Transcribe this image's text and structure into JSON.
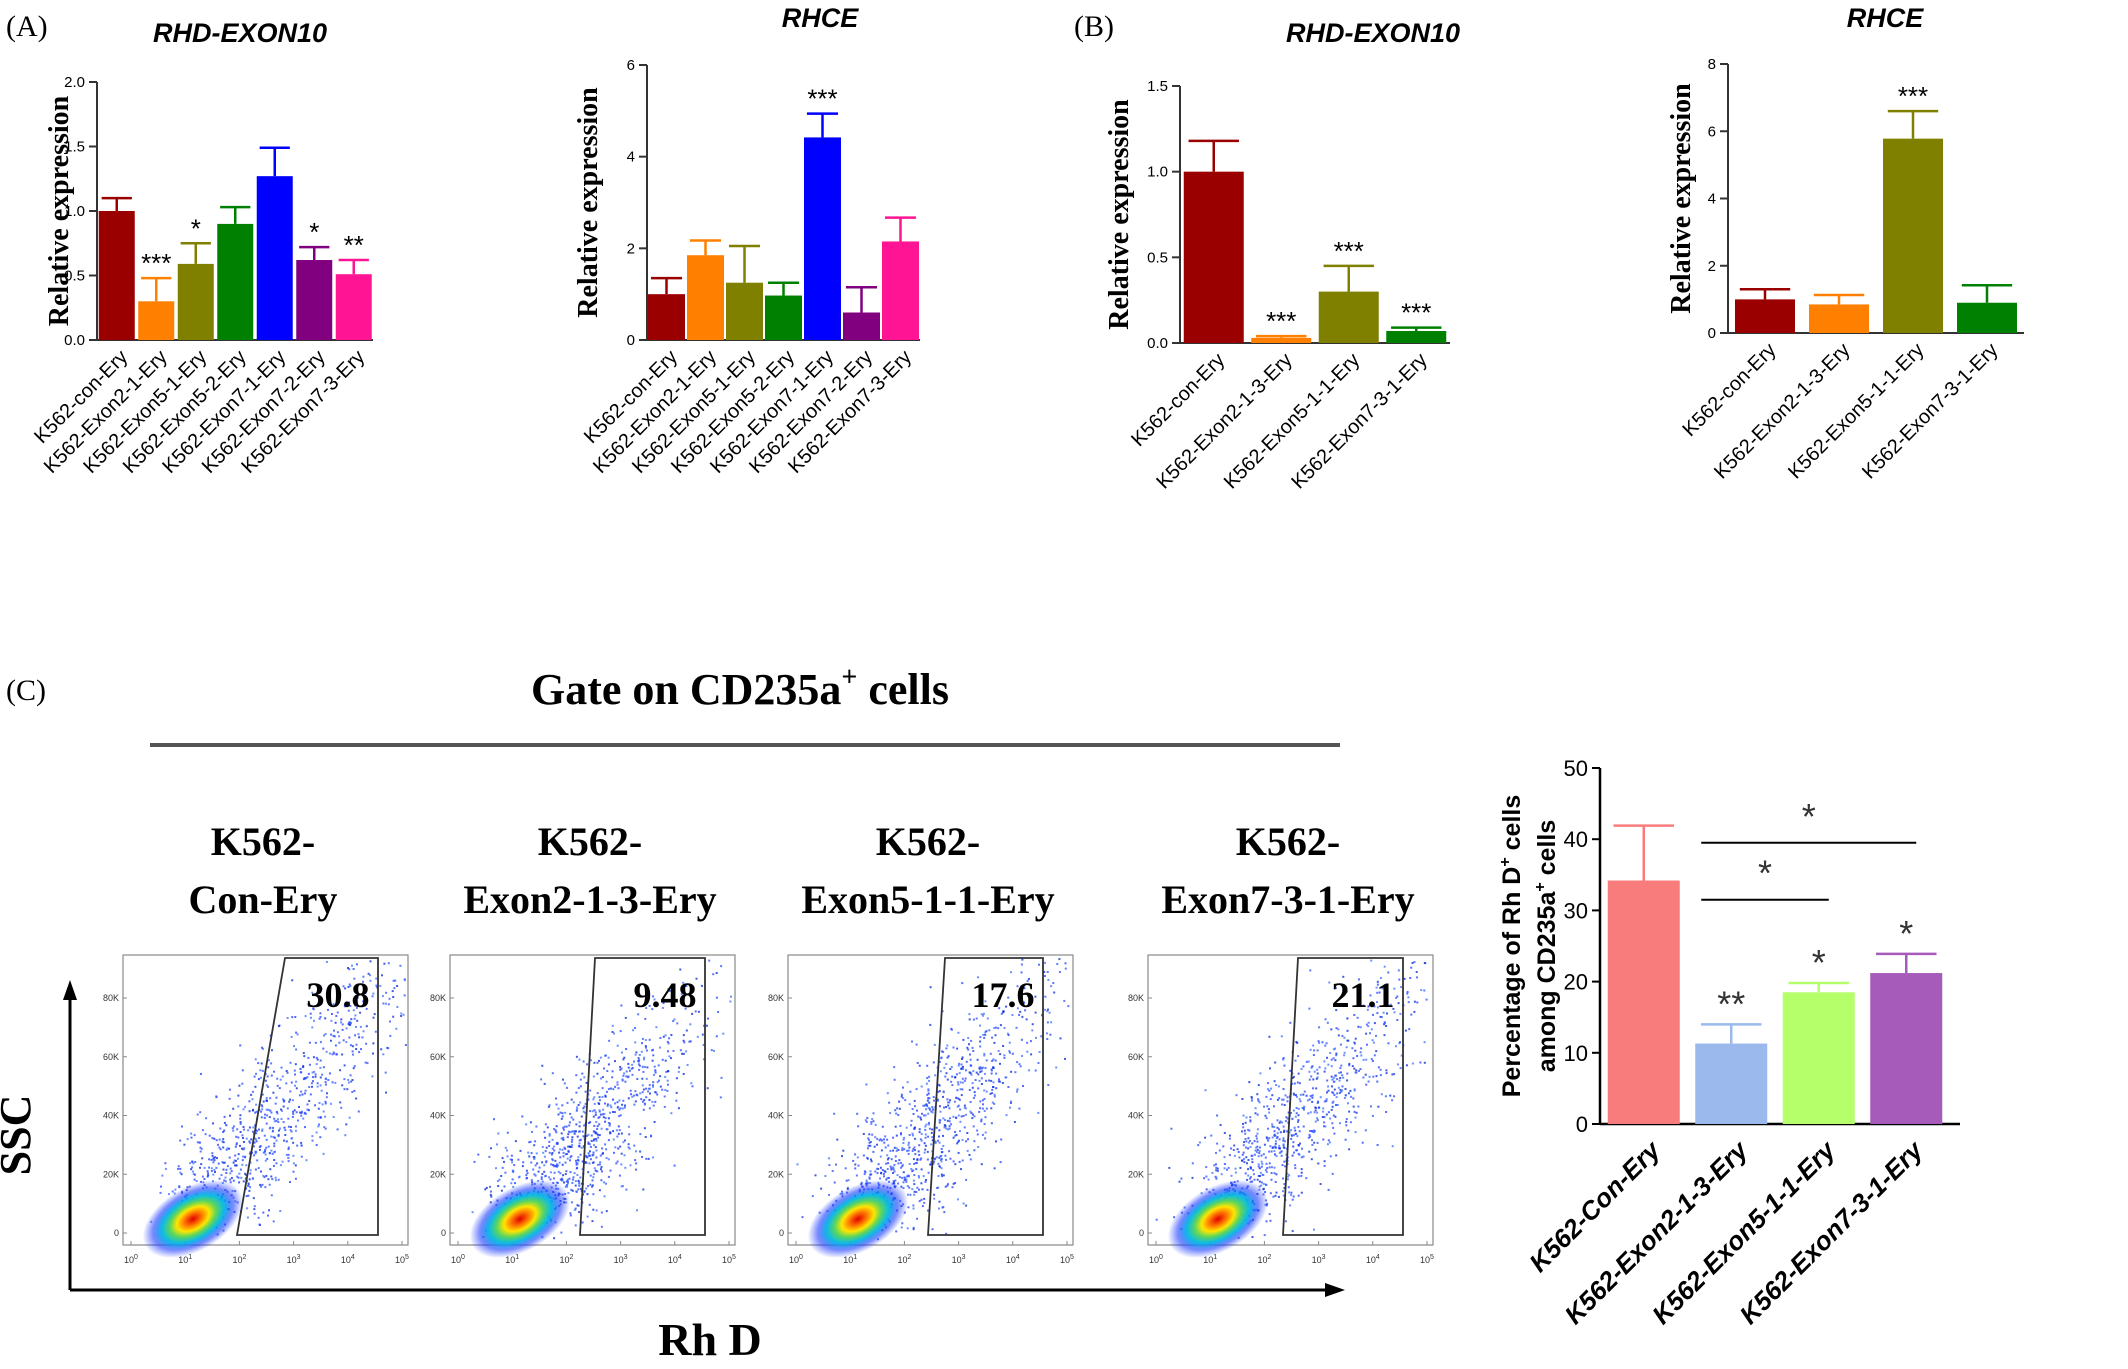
{
  "panel_labels": {
    "a": "(A)",
    "b": "(B)",
    "c": "(C)"
  },
  "gate_title": "Gate on CD235a",
  "gate_title_sup": "+",
  "gate_title_suffix": " cells",
  "flow": {
    "y_label": "SSC",
    "x_label": "Rh D",
    "y_ticks": [
      "0",
      "20K",
      "40K",
      "60K",
      "80K"
    ],
    "x_ticks": [
      "10",
      "10",
      "10",
      "10",
      "10",
      "10"
    ],
    "x_tick_exps": [
      "0",
      "1",
      "2",
      "3",
      "4",
      "5"
    ],
    "panels": [
      {
        "title_line1": "K562-",
        "title_line2": "Con-Ery",
        "gate_value": "30.8"
      },
      {
        "title_line1": "K562-",
        "title_line2": "Exon2-1-3-Ery",
        "gate_value": "9.48"
      },
      {
        "title_line1": "K562-",
        "title_line2": "Exon5-1-1-Ery",
        "gate_value": "17.6"
      },
      {
        "title_line1": "K562-",
        "title_line2": "Exon7-3-1-Ery",
        "gate_value": "21.1"
      }
    ]
  },
  "chart_data": [
    {
      "id": "A1",
      "type": "bar",
      "title": "RHD-EXON10",
      "title_italic": true,
      "ylabel": "Relative expression",
      "ylim": [
        0,
        2.0
      ],
      "yticks": [
        0.0,
        0.5,
        1.0,
        1.5,
        2.0
      ],
      "ytick_labels": [
        "0.0",
        "0.5",
        "1.0",
        "1.5",
        "2.0"
      ],
      "categories": [
        "K562-con-Ery",
        "K562-Exon2-1-Ery",
        "K562-Exon5-1-Ery",
        "K562-Exon5-2-Ery",
        "K562-Exon7-1-Ery",
        "K562-Exon7-2-Ery",
        "K562-Exon7-3-Ery"
      ],
      "values": [
        1.0,
        0.3,
        0.59,
        0.9,
        1.27,
        0.62,
        0.51
      ],
      "errors": [
        0.1,
        0.18,
        0.16,
        0.13,
        0.22,
        0.1,
        0.11
      ],
      "significance": [
        "",
        "***",
        "*",
        "",
        "",
        "*",
        "**"
      ],
      "colors": [
        "#9b0000",
        "#ff8000",
        "#808000",
        "#008000",
        "#0000ff",
        "#800080",
        "#ff1493"
      ]
    },
    {
      "id": "A2",
      "type": "bar",
      "title": "RHCE",
      "title_italic": true,
      "ylabel": "Relative expression",
      "ylim": [
        0,
        6
      ],
      "yticks": [
        0,
        2,
        4,
        6
      ],
      "ytick_labels": [
        "0",
        "2",
        "4",
        "6"
      ],
      "categories": [
        "K562-con-Ery",
        "K562-Exon2-1-Ery",
        "K562-Exon5-1-Ery",
        "K562-Exon5-2-Ery",
        "K562-Exon7-1-Ery",
        "K562-Exon7-2-Ery",
        "K562-Exon7-3-Ery"
      ],
      "values": [
        1.0,
        1.85,
        1.25,
        0.97,
        4.42,
        0.6,
        2.15
      ],
      "errors": [
        0.35,
        0.32,
        0.8,
        0.28,
        0.52,
        0.55,
        0.52
      ],
      "significance": [
        "",
        "",
        "",
        "",
        "***",
        "",
        ""
      ],
      "colors": [
        "#9b0000",
        "#ff8000",
        "#808000",
        "#008000",
        "#0000ff",
        "#800080",
        "#ff1493"
      ]
    },
    {
      "id": "B1",
      "type": "bar",
      "title": "RHD-EXON10",
      "title_italic": true,
      "ylabel": "Relative expression",
      "ylim": [
        0,
        1.5
      ],
      "yticks": [
        0.0,
        0.5,
        1.0,
        1.5
      ],
      "ytick_labels": [
        "0.0",
        "0.5",
        "1.0",
        "1.5"
      ],
      "categories": [
        "K562-con-Ery",
        "K562-Exon2-1-3-Ery",
        "K562-Exon5-1-1-Ery",
        "K562-Exon7-3-1-Ery"
      ],
      "values": [
        1.0,
        0.03,
        0.3,
        0.07
      ],
      "errors": [
        0.18,
        0.01,
        0.15,
        0.02
      ],
      "significance": [
        "",
        "***",
        "***",
        "***"
      ],
      "colors": [
        "#9b0000",
        "#ff8000",
        "#808000",
        "#008000"
      ]
    },
    {
      "id": "B2",
      "type": "bar",
      "title": "RHCE",
      "title_italic": true,
      "ylabel": "Relative expression",
      "ylim": [
        0,
        8
      ],
      "yticks": [
        0,
        2,
        4,
        6,
        8
      ],
      "ytick_labels": [
        "0",
        "2",
        "4",
        "6",
        "8"
      ],
      "categories": [
        "K562-con-Ery",
        "K562-Exon2-1-3-Ery",
        "K562-Exon5-1-1-Ery",
        "K562-Exon7-3-1-Ery"
      ],
      "values": [
        1.0,
        0.85,
        5.78,
        0.9
      ],
      "errors": [
        0.3,
        0.28,
        0.82,
        0.52
      ],
      "significance": [
        "",
        "",
        "***",
        ""
      ],
      "colors": [
        "#9b0000",
        "#ff8000",
        "#808000",
        "#008000"
      ]
    },
    {
      "id": "C",
      "type": "bar",
      "title": "",
      "ylabel_line1": "Percentage of Rh D",
      "ylabel_sup1": "+",
      "ylabel_line1_suffix": " cells",
      "ylabel_line2": "among CD235a",
      "ylabel_sup2": "+",
      "ylabel_line2_suffix": " cells",
      "ylim": [
        0,
        50
      ],
      "yticks": [
        0,
        10,
        20,
        30,
        40,
        50
      ],
      "ytick_labels": [
        "0",
        "10",
        "20",
        "30",
        "40",
        "50"
      ],
      "categories": [
        "K562-Con-Ery",
        "K562-Exon2-1-3-Ery",
        "K562-Exon5-1-1-Ery",
        "K562-Exon7-3-1-Ery"
      ],
      "values": [
        34.2,
        11.3,
        18.5,
        21.2
      ],
      "errors": [
        7.7,
        2.7,
        1.3,
        2.7
      ],
      "significance": [
        "",
        "**",
        "*",
        "*"
      ],
      "colors": [
        "#f87c7c",
        "#9cb9ee",
        "#b4ff6a",
        "#a65ab9"
      ],
      "brackets": [
        {
          "from": 1,
          "to": 2,
          "label": "*",
          "y": 31.5
        },
        {
          "from": 1,
          "to": 3,
          "label": "*",
          "y": 39.5
        }
      ]
    }
  ]
}
